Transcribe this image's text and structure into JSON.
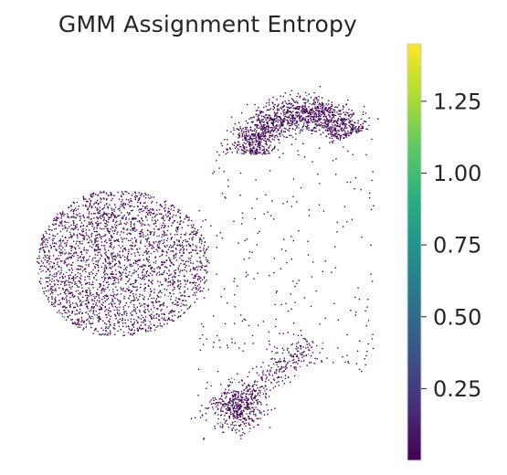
{
  "chart_data": {
    "type": "scatter",
    "title": "GMM Assignment Entropy",
    "xlabel": "",
    "ylabel": "",
    "axes_visible": false,
    "grid": false,
    "point_color_base": "#440154",
    "colormap": "viridis",
    "colorbar": {
      "position": "right",
      "range": [
        0.0,
        1.45
      ],
      "ticks": [
        0.25,
        0.5,
        0.75,
        1.0,
        1.25
      ],
      "tick_labels": [
        "0.25",
        "0.50",
        "0.75",
        "1.00",
        "1.25"
      ]
    },
    "clusters": [
      {
        "name": "",
        "cx": -4.6,
        "cy": 0.3,
        "points": 2600,
        "entropy_mean": 0.04
      },
      {
        "name": "",
        "cx": 2.0,
        "cy": 5.8,
        "points": 1400,
        "entropy_mean": 0.01
      },
      {
        "name": "",
        "cx": 0.6,
        "cy": -4.9,
        "points": 700,
        "entropy_mean": 0.05
      }
    ]
  }
}
